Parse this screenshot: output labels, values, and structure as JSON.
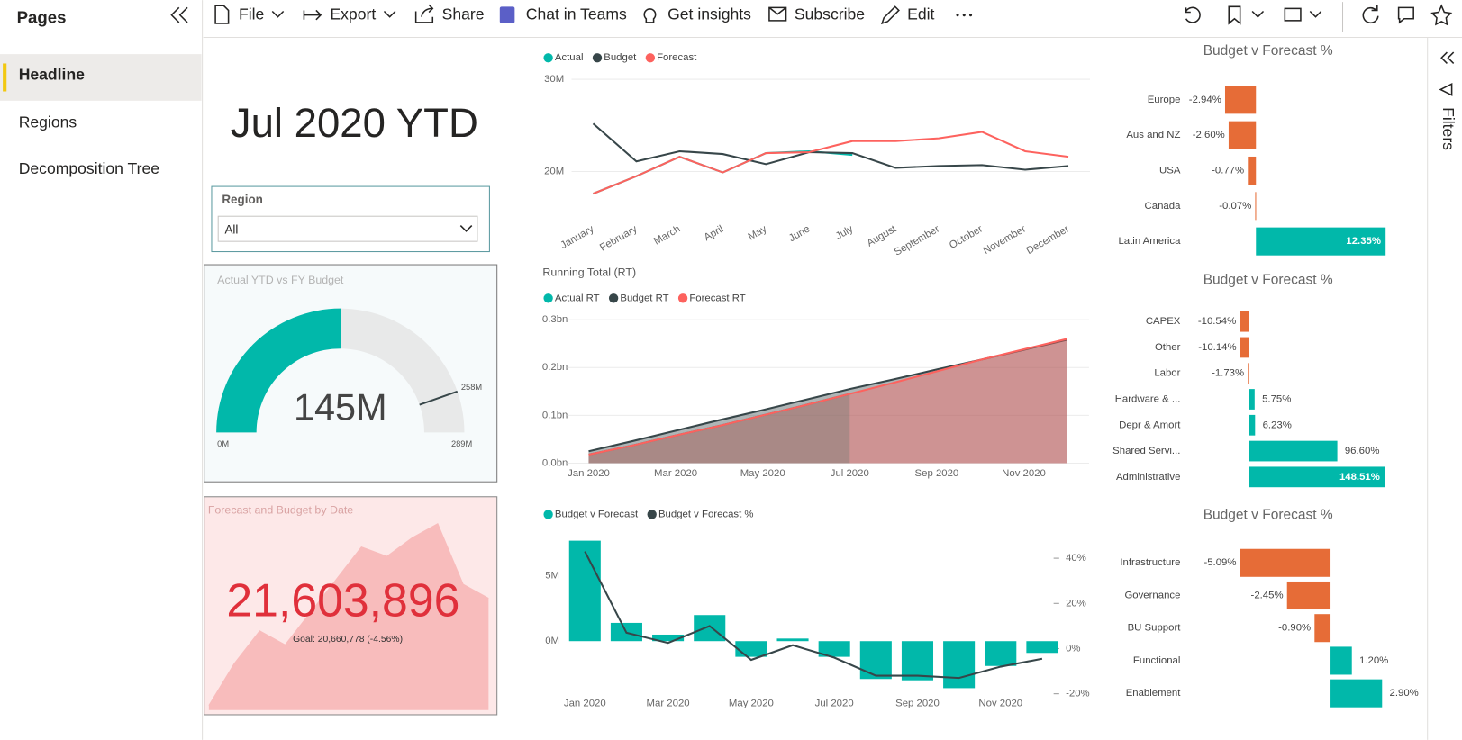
{
  "sidebar": {
    "title": "Pages",
    "pages": [
      "Headline",
      "Regions",
      "Decomposition Tree"
    ],
    "selected": 0
  },
  "toolbar": [
    "File",
    "Export",
    "Share",
    "Chat in Teams",
    "Get insights",
    "Subscribe",
    "Edit"
  ],
  "filters": "Filters",
  "headline": "Jul 2020 YTD",
  "slicer": {
    "label": "Region",
    "value": "All"
  },
  "gauge": {
    "title": "Actual YTD vs FY Budget",
    "min": 0,
    "min_label": "0M",
    "max": 289,
    "max_label": "289M",
    "value": 145,
    "value_label": "145M",
    "target": 258,
    "target_label": "258M",
    "color": "#01b8aa"
  },
  "kpi": {
    "title": "Forecast and Budget by Date",
    "value": "21,603,896",
    "goal_label": "Goal: 20,660,778 (-4.56%)",
    "trend": [
      5,
      50,
      85,
      70,
      105,
      140,
      175,
      165,
      185,
      200,
      135,
      120
    ]
  },
  "chart_data": [
    {
      "type": "line",
      "categories": [
        "January",
        "February",
        "March",
        "April",
        "May",
        "June",
        "July",
        "August",
        "September",
        "October",
        "November",
        "December"
      ],
      "series": [
        {
          "name": "Actual",
          "color": "#01b8aa",
          "values": [
            17.6,
            19.5,
            21.6,
            19.9,
            22.0,
            22.2,
            21.8,
            null,
            null,
            null,
            null,
            null
          ]
        },
        {
          "name": "Budget",
          "color": "#374649",
          "values": [
            25.2,
            21.1,
            22.2,
            21.9,
            20.8,
            22.1,
            22.0,
            20.4,
            20.6,
            20.7,
            20.2,
            20.6
          ]
        },
        {
          "name": "Forecast",
          "color": "#fd625e",
          "values": [
            17.6,
            19.5,
            21.6,
            19.9,
            22.0,
            22.1,
            23.3,
            23.3,
            23.6,
            24.3,
            22.2,
            21.6
          ]
        }
      ],
      "ylim": [
        17,
        30
      ],
      "yticks": [
        {
          "value": 20,
          "label": "20M"
        },
        {
          "value": 30,
          "label": "30M"
        }
      ],
      "grid": true
    },
    {
      "type": "area",
      "title": "Running Total (RT)",
      "categories": [
        "Jan 2020",
        null,
        "Mar 2020",
        null,
        "May 2020",
        null,
        "Jul 2020",
        null,
        "Sep 2020",
        null,
        "Nov 2020",
        null
      ],
      "series": [
        {
          "name": "Actual RT",
          "color": "#01b8aa",
          "values": [
            0.018,
            0.037,
            0.058,
            0.078,
            0.1,
            0.122,
            0.145,
            null,
            null,
            null,
            null,
            null
          ]
        },
        {
          "name": "Budget RT",
          "color": "#374649",
          "values": [
            0.025,
            0.046,
            0.068,
            0.09,
            0.111,
            0.133,
            0.155,
            0.175,
            0.196,
            0.216,
            0.237,
            0.258
          ]
        },
        {
          "name": "Forecast RT",
          "color": "#fd625e",
          "values": [
            0.018,
            0.037,
            0.058,
            0.078,
            0.1,
            0.122,
            0.145,
            0.168,
            0.192,
            0.216,
            0.238,
            0.26
          ]
        }
      ],
      "ylim": [
        0,
        0.3
      ],
      "yticks": [
        {
          "value": 0,
          "label": "0.0bn"
        },
        {
          "value": 0.1,
          "label": "0.1bn"
        },
        {
          "value": 0.2,
          "label": "0.2bn"
        },
        {
          "value": 0.3,
          "label": "0.3bn"
        }
      ],
      "grid": true
    },
    {
      "type": "combo",
      "categories": [
        "Jan 2020",
        null,
        "Mar 2020",
        null,
        "May 2020",
        null,
        "Jul 2020",
        null,
        "Sep 2020",
        null,
        "Nov 2020",
        null
      ],
      "series": [
        {
          "name": "Budget v Forecast",
          "type": "bar",
          "color": "#01b8aa",
          "values": [
            7.7,
            1.4,
            0.5,
            2.0,
            -1.2,
            0.2,
            -1.2,
            -2.9,
            -3.0,
            -3.6,
            -1.9,
            -0.9
          ]
        },
        {
          "name": "Budget v Forecast %",
          "type": "line",
          "axis": "y2",
          "color": "#374649",
          "values": [
            43,
            7,
            2.5,
            10,
            -5,
            1.5,
            -4,
            -12,
            -12,
            -13,
            -8,
            -4.5
          ]
        }
      ],
      "ylim": [
        -5.14,
        8.07
      ],
      "yticks": [
        {
          "value": 0,
          "label": "0M"
        },
        {
          "value": 5,
          "label": "5M"
        }
      ],
      "y2lim": [
        -26.4,
        49.9
      ],
      "y2ticks": [
        {
          "value": 40,
          "label": "40%"
        },
        {
          "value": 20,
          "label": "20%"
        },
        {
          "value": 0,
          "label": "0%"
        },
        {
          "value": -20,
          "label": "-20%"
        }
      ],
      "grid": false
    },
    {
      "type": "hbar",
      "title": "Budget v Forecast %",
      "categories": [
        "Europe",
        "Aus and NZ",
        "USA",
        "Canada",
        "Latin America"
      ],
      "values": [
        -2.94,
        -2.6,
        -0.77,
        -0.07,
        12.35
      ],
      "value_labels": [
        "-2.94%",
        "-2.60%",
        "-0.77%",
        "-0.07%",
        "12.35%"
      ],
      "negative_color": "#e66c37",
      "positive_color": "#01b8aa"
    },
    {
      "type": "hbar",
      "title": "Budget v Forecast %",
      "categories": [
        "CAPEX",
        "Other",
        "Labor",
        "Hardware & ...",
        "Depr & Amort",
        "Shared Servi...",
        "Administrative"
      ],
      "values": [
        -10.54,
        -10.14,
        -1.73,
        5.75,
        6.23,
        96.6,
        148.51
      ],
      "value_labels": [
        "-10.54%",
        "-10.14%",
        "-1.73%",
        "5.75%",
        "6.23%",
        "96.60%",
        "148.51%"
      ],
      "negative_color": "#e66c37",
      "positive_color": "#01b8aa"
    },
    {
      "type": "hbar",
      "title": "Budget v Forecast %",
      "categories": [
        "Infrastructure",
        "Governance",
        "BU Support",
        "Functional",
        "Enablement"
      ],
      "values": [
        -5.09,
        -2.45,
        -0.9,
        1.2,
        2.9
      ],
      "value_labels": [
        "-5.09%",
        "-2.45%",
        "-0.90%",
        "1.20%",
        "2.90%"
      ],
      "negative_color": "#e66c37",
      "positive_color": "#01b8aa"
    }
  ]
}
